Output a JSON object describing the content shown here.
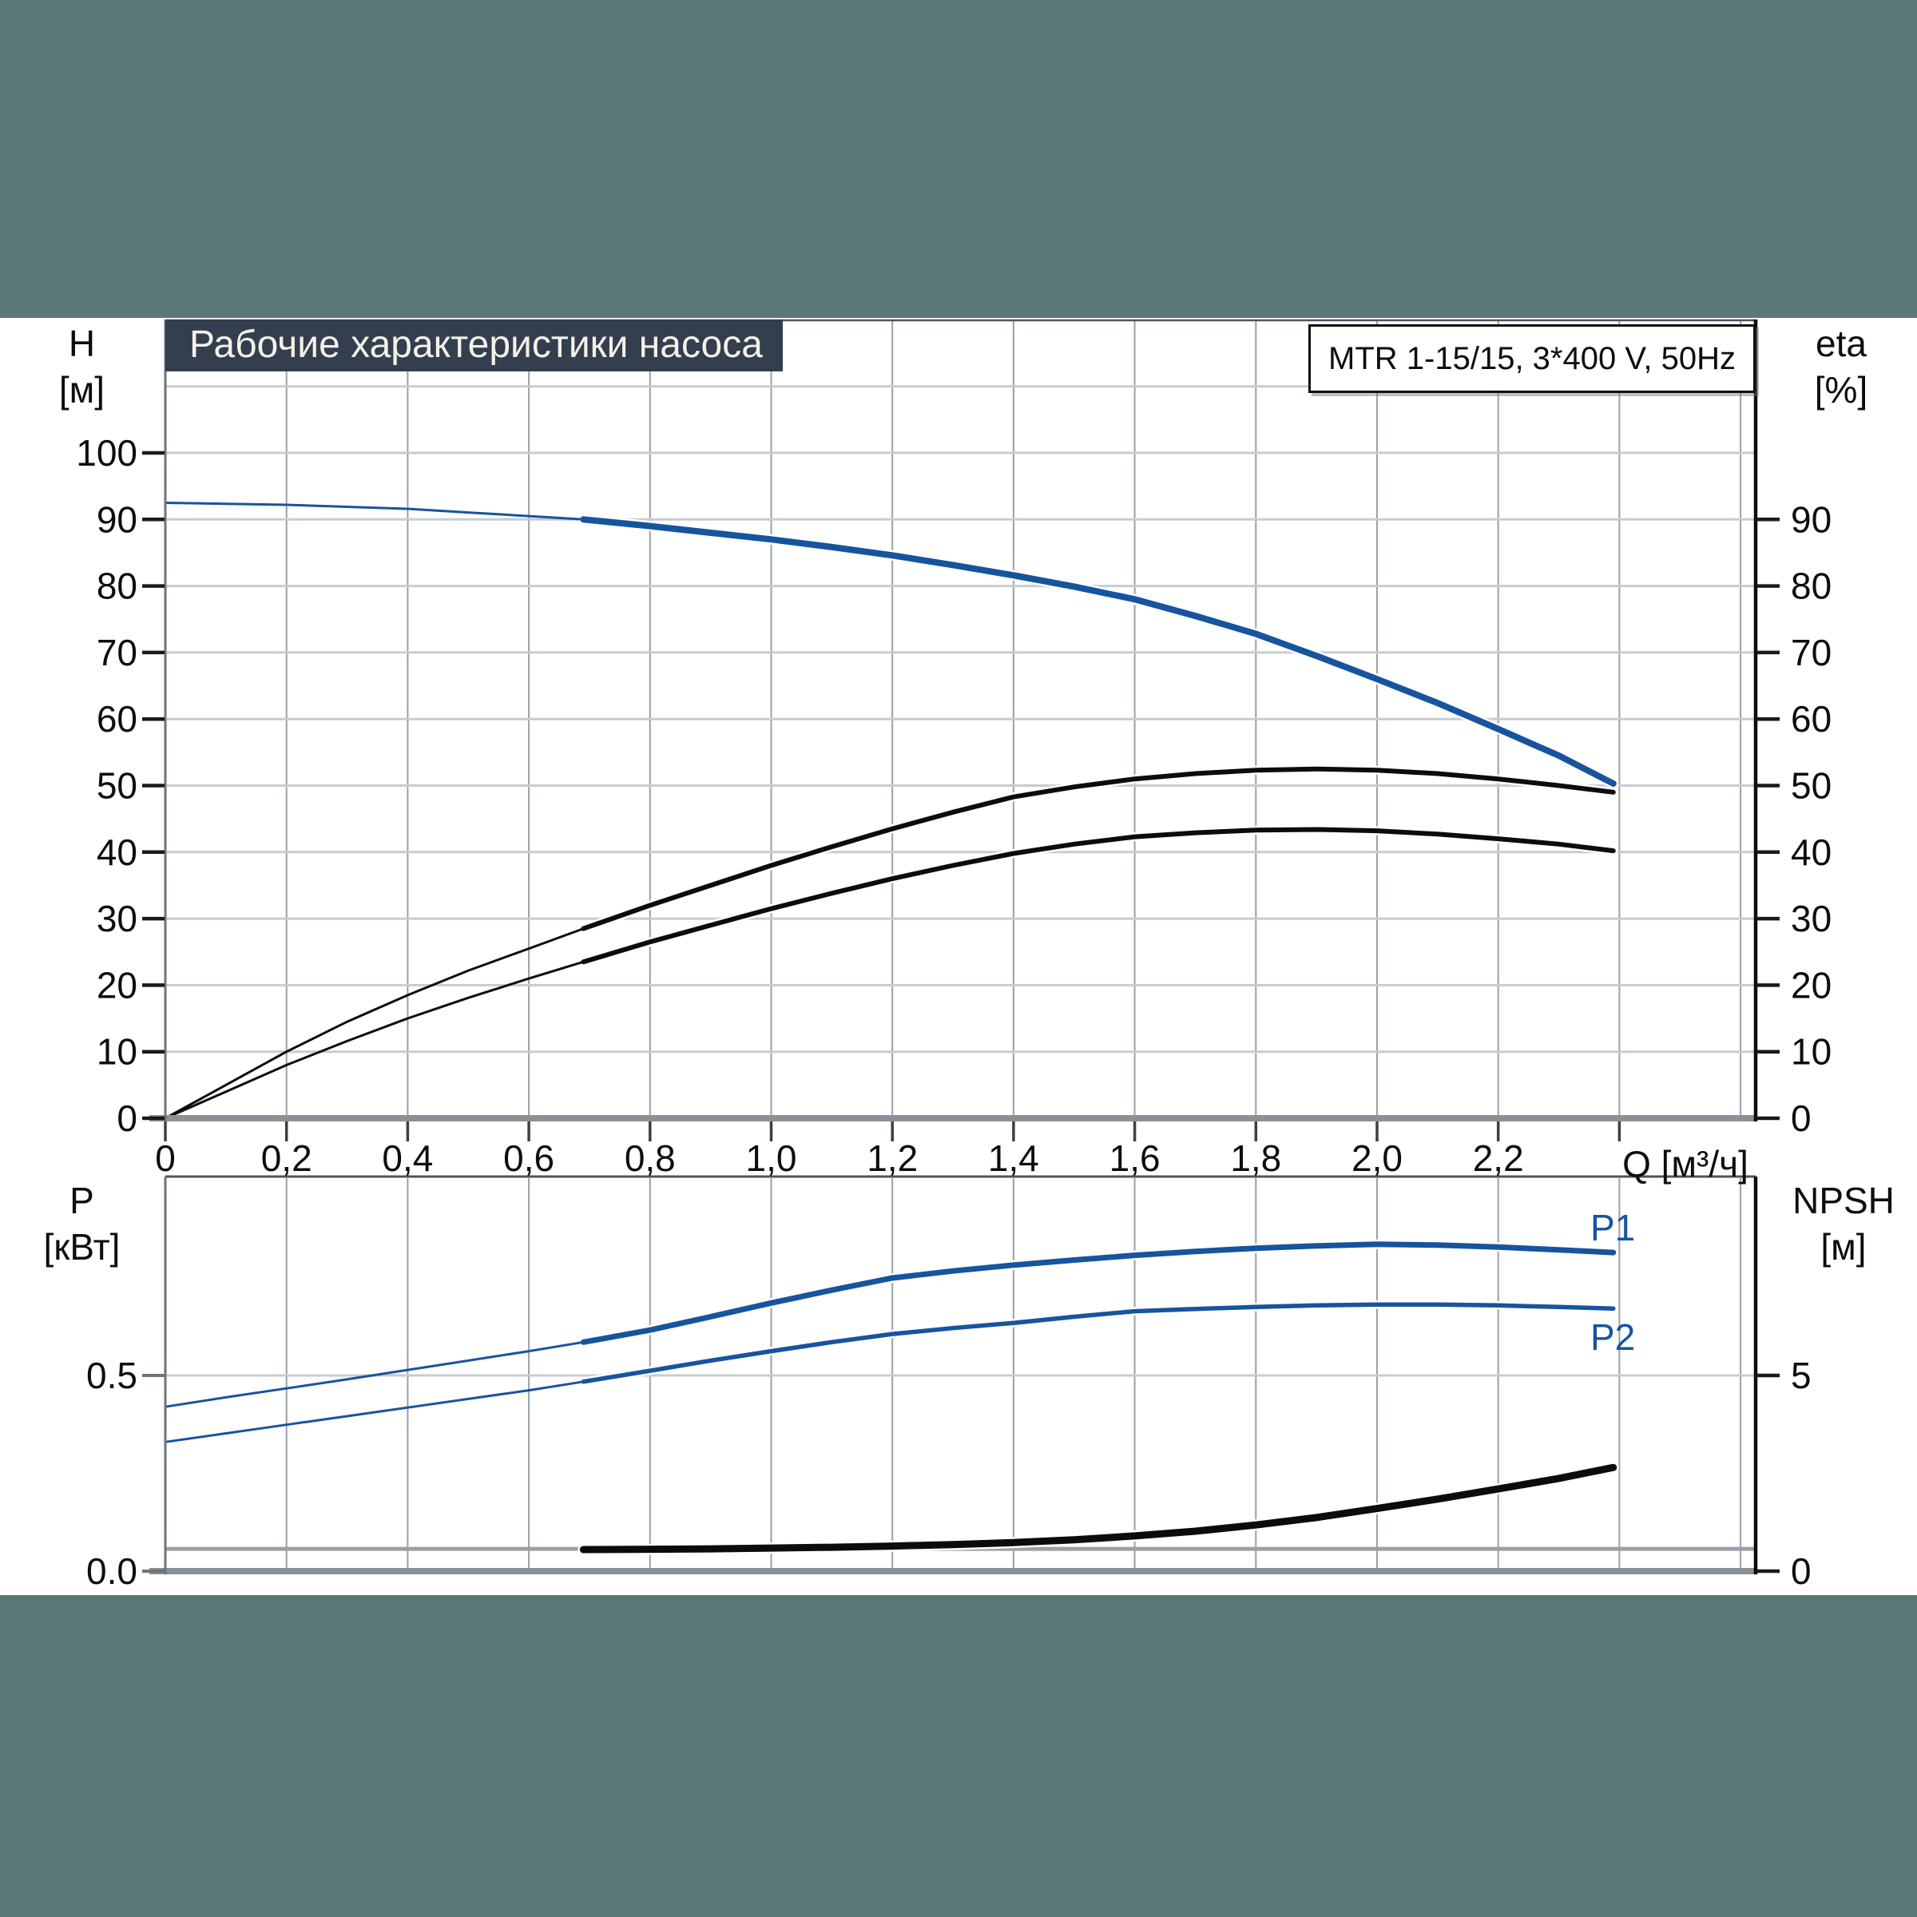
{
  "page": {
    "background_color": "#5a7878",
    "panel_color": "#ffffff",
    "accent_blue": "#17549e",
    "curve_black": "#0c0c0c",
    "title_bar_bg": "#333e4e"
  },
  "title_bar": {
    "text": "Рабочие характеристики насоса"
  },
  "model_box": {
    "text": "MTR 1-15/15, 3*400 V, 50Hz"
  },
  "top_chart": {
    "left_axis_title": {
      "line1": "H",
      "line2": "[м]"
    },
    "right_axis_title": {
      "line1": "eta",
      "line2": "[%]"
    },
    "x_axis_title": "Q [м³/ч]",
    "left_ticks": [
      {
        "v": 100,
        "label": "100"
      },
      {
        "v": 90,
        "label": "90"
      },
      {
        "v": 80,
        "label": "80"
      },
      {
        "v": 70,
        "label": "70"
      },
      {
        "v": 60,
        "label": "60"
      },
      {
        "v": 50,
        "label": "50"
      },
      {
        "v": 40,
        "label": "40"
      },
      {
        "v": 30,
        "label": "30"
      },
      {
        "v": 20,
        "label": "20"
      },
      {
        "v": 10,
        "label": "10"
      },
      {
        "v": 0,
        "label": "0"
      }
    ],
    "right_ticks": [
      {
        "v": 90,
        "label": "90"
      },
      {
        "v": 80,
        "label": "80"
      },
      {
        "v": 70,
        "label": "70"
      },
      {
        "v": 60,
        "label": "60"
      },
      {
        "v": 50,
        "label": "50"
      },
      {
        "v": 40,
        "label": "40"
      },
      {
        "v": 30,
        "label": "30"
      },
      {
        "v": 20,
        "label": "20"
      },
      {
        "v": 10,
        "label": "10"
      },
      {
        "v": 0,
        "label": "0"
      }
    ],
    "x_labels": [
      {
        "v": 0,
        "label": "0"
      },
      {
        "v": 0.2,
        "label": "0,2"
      },
      {
        "v": 0.4,
        "label": "0,4"
      },
      {
        "v": 0.6,
        "label": "0,6"
      },
      {
        "v": 0.8,
        "label": "0,8"
      },
      {
        "v": 1.0,
        "label": "1,0"
      },
      {
        "v": 1.2,
        "label": "1,2"
      },
      {
        "v": 1.4,
        "label": "1,4"
      },
      {
        "v": 1.6,
        "label": "1,6"
      },
      {
        "v": 1.8,
        "label": "1,8"
      },
      {
        "v": 2.0,
        "label": "2,0"
      },
      {
        "v": 2.2,
        "label": "2,2"
      }
    ]
  },
  "bottom_chart": {
    "left_axis_title": {
      "line1": "P",
      "line2": "[кВт]"
    },
    "right_axis_title": {
      "line1": "NPSH",
      "line2": "[м]"
    },
    "left_ticks": [
      {
        "v": 0.5,
        "label": "0.5"
      },
      {
        "v": 0.0,
        "label": "0.0"
      }
    ],
    "right_ticks": [
      {
        "v": 5,
        "label": "5"
      },
      {
        "v": 0,
        "label": "0"
      }
    ],
    "series_labels": {
      "p1": "P1",
      "p2": "P2"
    },
    "reference_line": {
      "axis": "NPSH",
      "value": 0.57
    }
  },
  "chart_data": [
    {
      "type": "line",
      "title": "Рабочие характеристики насоса",
      "x_label": "Q [м³/ч]",
      "y_left_label": "H [м]",
      "y_right_label": "eta [%]",
      "x_range": [
        0,
        2.625
      ],
      "y_left_range": [
        0,
        120
      ],
      "y_right_range": [
        0,
        120
      ],
      "x_grid": {
        "from": 0.2,
        "to": 2.6,
        "step": 0.2
      },
      "y_grid": {
        "from": 10,
        "to": 110,
        "step": 10
      },
      "x_axis_tick_marks": {
        "from": 0,
        "to": 2.4,
        "step": 0.2
      },
      "duty_range_start_q": 0.69,
      "series": [
        {
          "name": "H(Q) head curve",
          "axis": "left",
          "color": "#17549e",
          "thin_until": 0.69,
          "width_thin": 3,
          "width_thick": 8,
          "halo": true,
          "points": [
            [
              0,
              92.5
            ],
            [
              0.1,
              92.35
            ],
            [
              0.2,
              92.2
            ],
            [
              0.3,
              91.9
            ],
            [
              0.4,
              91.6
            ],
            [
              0.5,
              91.05
            ],
            [
              0.6,
              90.5
            ],
            [
              0.69,
              90.0
            ],
            [
              0.8,
              89.0
            ],
            [
              0.9,
              88.0
            ],
            [
              1.0,
              87.0
            ],
            [
              1.1,
              85.85
            ],
            [
              1.2,
              84.6
            ],
            [
              1.3,
              83.15
            ],
            [
              1.4,
              81.6
            ],
            [
              1.5,
              79.9
            ],
            [
              1.6,
              78.0
            ],
            [
              1.7,
              75.5
            ],
            [
              1.8,
              72.8
            ],
            [
              1.9,
              69.5
            ],
            [
              2.0,
              66.0
            ],
            [
              2.1,
              62.4
            ],
            [
              2.2,
              58.5
            ],
            [
              2.3,
              54.5
            ],
            [
              2.39,
              50.3
            ]
          ]
        },
        {
          "name": "eta pump",
          "axis": "right",
          "color": "#0c0c0c",
          "thin_until": 0.69,
          "width_thin": 3,
          "width_thick": 6,
          "halo": true,
          "points": [
            [
              0,
              0
            ],
            [
              0.1,
              5
            ],
            [
              0.2,
              10
            ],
            [
              0.3,
              14.5
            ],
            [
              0.4,
              18.5
            ],
            [
              0.5,
              22.2
            ],
            [
              0.6,
              25.5
            ],
            [
              0.69,
              28.5
            ],
            [
              0.8,
              32
            ],
            [
              0.9,
              35
            ],
            [
              1.0,
              38
            ],
            [
              1.1,
              40.8
            ],
            [
              1.2,
              43.5
            ],
            [
              1.3,
              46
            ],
            [
              1.4,
              48.3
            ],
            [
              1.5,
              49.8
            ],
            [
              1.6,
              51
            ],
            [
              1.7,
              51.8
            ],
            [
              1.8,
              52.3
            ],
            [
              1.9,
              52.5
            ],
            [
              2.0,
              52.3
            ],
            [
              2.1,
              51.8
            ],
            [
              2.2,
              51
            ],
            [
              2.3,
              50
            ],
            [
              2.39,
              49
            ]
          ]
        },
        {
          "name": "eta pump + motor",
          "axis": "right",
          "color": "#0c0c0c",
          "thin_until": 0.69,
          "width_thin": 3,
          "width_thick": 6,
          "halo": true,
          "points": [
            [
              0,
              0
            ],
            [
              0.1,
              4
            ],
            [
              0.2,
              8
            ],
            [
              0.3,
              11.6
            ],
            [
              0.4,
              15
            ],
            [
              0.5,
              18.1
            ],
            [
              0.6,
              21
            ],
            [
              0.69,
              23.5
            ],
            [
              0.8,
              26.5
            ],
            [
              0.9,
              29
            ],
            [
              1.0,
              31.5
            ],
            [
              1.1,
              33.8
            ],
            [
              1.2,
              36
            ],
            [
              1.3,
              38
            ],
            [
              1.4,
              39.8
            ],
            [
              1.5,
              41.2
            ],
            [
              1.6,
              42.3
            ],
            [
              1.7,
              42.9
            ],
            [
              1.8,
              43.3
            ],
            [
              1.9,
              43.4
            ],
            [
              2.0,
              43.2
            ],
            [
              2.1,
              42.7
            ],
            [
              2.2,
              42
            ],
            [
              2.3,
              41.2
            ],
            [
              2.39,
              40.2
            ]
          ]
        }
      ]
    },
    {
      "type": "line",
      "x_label": "Q [м³/ч]",
      "y_left_label": "P [кВт]",
      "y_right_label": "NPSH [м]",
      "x_range": [
        0,
        2.625
      ],
      "y_left_range": [
        0,
        1.0
      ],
      "y_right_range": [
        0,
        10
      ],
      "x_grid": {
        "from": 0.2,
        "to": 2.6,
        "step": 0.2
      },
      "y_grid_left_values": [
        0.5
      ],
      "duty_range_start_q": 0.69,
      "series": [
        {
          "name": "P1 power input",
          "label": "P1",
          "axis": "P",
          "color": "#17549e",
          "thin_until": 0.69,
          "width_thin": 3,
          "width_thick": 7,
          "halo": true,
          "points": [
            [
              0,
              0.42
            ],
            [
              0.1,
              0.444
            ],
            [
              0.2,
              0.467
            ],
            [
              0.3,
              0.49
            ],
            [
              0.4,
              0.514
            ],
            [
              0.5,
              0.538
            ],
            [
              0.6,
              0.562
            ],
            [
              0.69,
              0.585
            ],
            [
              0.8,
              0.616
            ],
            [
              0.9,
              0.65
            ],
            [
              1.0,
              0.685
            ],
            [
              1.1,
              0.718
            ],
            [
              1.2,
              0.749
            ],
            [
              1.3,
              0.767
            ],
            [
              1.4,
              0.782
            ],
            [
              1.5,
              0.795
            ],
            [
              1.6,
              0.807
            ],
            [
              1.7,
              0.817
            ],
            [
              1.8,
              0.825
            ],
            [
              1.9,
              0.831
            ],
            [
              2.0,
              0.835
            ],
            [
              2.1,
              0.833
            ],
            [
              2.2,
              0.828
            ],
            [
              2.3,
              0.821
            ],
            [
              2.39,
              0.814
            ]
          ]
        },
        {
          "name": "P2 shaft power",
          "label": "P2",
          "axis": "P",
          "color": "#17549e",
          "thin_until": 0.69,
          "width_thin": 3,
          "width_thick": 5.5,
          "halo": true,
          "points": [
            [
              0,
              0.33
            ],
            [
              0.1,
              0.352
            ],
            [
              0.2,
              0.374
            ],
            [
              0.3,
              0.396
            ],
            [
              0.4,
              0.418
            ],
            [
              0.5,
              0.44
            ],
            [
              0.6,
              0.462
            ],
            [
              0.69,
              0.484
            ],
            [
              0.8,
              0.512
            ],
            [
              0.9,
              0.538
            ],
            [
              1.0,
              0.562
            ],
            [
              1.1,
              0.585
            ],
            [
              1.2,
              0.606
            ],
            [
              1.3,
              0.621
            ],
            [
              1.4,
              0.634
            ],
            [
              1.5,
              0.65
            ],
            [
              1.6,
              0.664
            ],
            [
              1.7,
              0.67
            ],
            [
              1.8,
              0.675
            ],
            [
              1.9,
              0.679
            ],
            [
              2.0,
              0.681
            ],
            [
              2.1,
              0.681
            ],
            [
              2.2,
              0.679
            ],
            [
              2.3,
              0.675
            ],
            [
              2.39,
              0.671
            ]
          ]
        },
        {
          "name": "NPSH curve",
          "axis": "NPSH",
          "color": "#0c0c0c",
          "width_thin": 3,
          "width_thick": 9,
          "halo": true,
          "points": [
            [
              0.69,
              0.55
            ],
            [
              0.8,
              0.56
            ],
            [
              0.9,
              0.57
            ],
            [
              1.0,
              0.59
            ],
            [
              1.1,
              0.61
            ],
            [
              1.2,
              0.64
            ],
            [
              1.3,
              0.68
            ],
            [
              1.4,
              0.73
            ],
            [
              1.5,
              0.8
            ],
            [
              1.6,
              0.9
            ],
            [
              1.7,
              1.02
            ],
            [
              1.8,
              1.18
            ],
            [
              1.9,
              1.37
            ],
            [
              2.0,
              1.6
            ],
            [
              2.1,
              1.84
            ],
            [
              2.2,
              2.1
            ],
            [
              2.3,
              2.37
            ],
            [
              2.39,
              2.65
            ]
          ]
        }
      ]
    }
  ]
}
